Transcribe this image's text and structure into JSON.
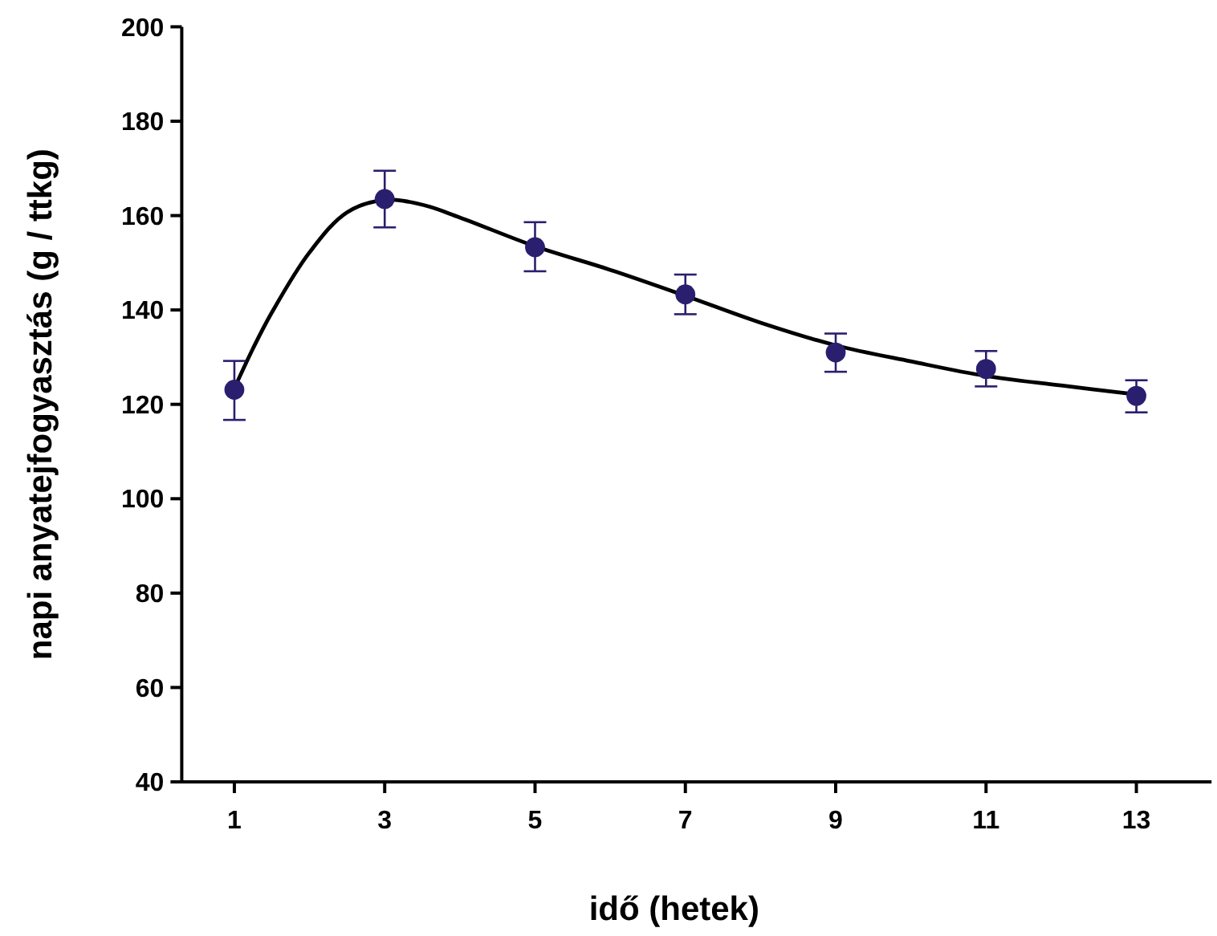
{
  "chart_data": {
    "type": "scatter",
    "xlabel": "idő (hetek)",
    "ylabel": "napi anyatejfogyasztás (g / ttkg)",
    "xlim": [
      0.3,
      14
    ],
    "xticks": [
      1,
      3,
      5,
      7,
      9,
      11,
      13
    ],
    "ylim": [
      40,
      200
    ],
    "yticks": [
      40,
      60,
      80,
      100,
      120,
      140,
      160,
      180,
      200
    ],
    "grid": false,
    "series": [
      {
        "color": "#2a1f6e",
        "marker": "circle",
        "x": [
          1,
          3,
          5,
          7,
          9,
          11,
          13
        ],
        "values": [
          123.1,
          163.5,
          153.3,
          143.3,
          131.0,
          127.5,
          121.8
        ],
        "errors": [
          [
            116.7,
            129.2
          ],
          [
            157.5,
            169.5
          ],
          [
            148.2,
            158.6
          ],
          [
            139.1,
            147.5
          ],
          [
            126.9,
            135.0
          ],
          [
            123.8,
            131.3
          ],
          [
            118.3,
            125.1
          ]
        ]
      },
      {
        "type": "line",
        "color": "#000000",
        "line_style": "solid",
        "x": [
          1,
          1.25,
          1.5,
          2,
          2.5,
          3,
          3.5,
          4,
          5,
          6,
          7,
          8,
          9,
          10,
          11,
          12,
          13
        ],
        "values": [
          123.4,
          131.9,
          139.5,
          152.2,
          160.7,
          163.3,
          162.3,
          159.6,
          153.5,
          148.5,
          143.0,
          137.3,
          132.5,
          129.1,
          126.0,
          124.0,
          122.1
        ]
      }
    ]
  }
}
